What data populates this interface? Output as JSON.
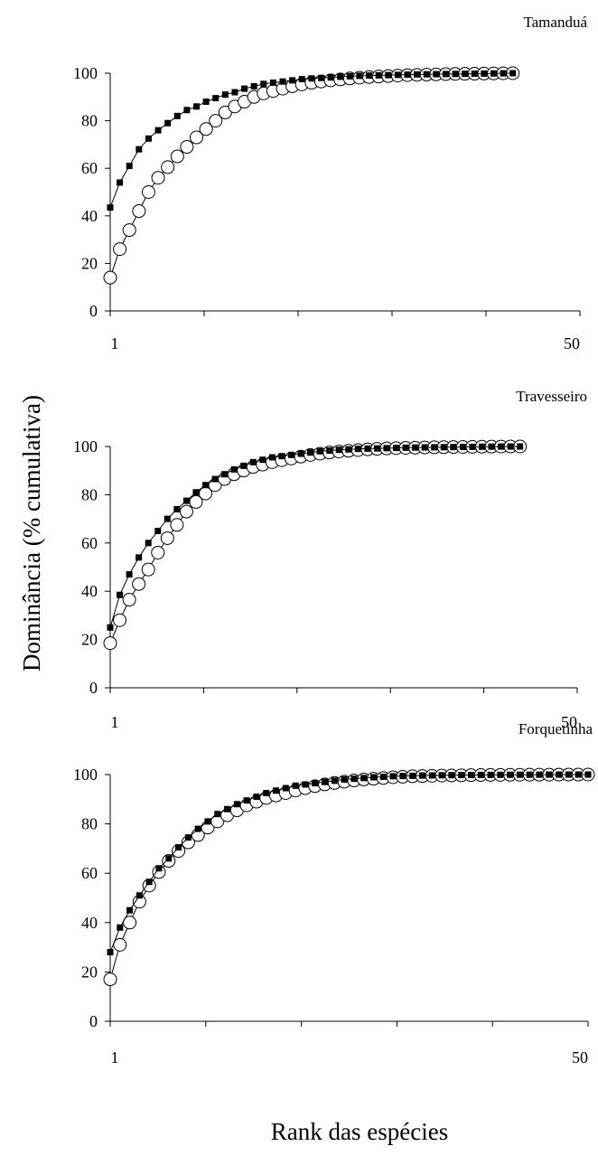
{
  "ylabel": "Dominância (% cumulativa)",
  "xlabel": "Rank das espécies",
  "colors": {
    "axis": "#000000",
    "filled_marker": "#000000",
    "open_marker_fill": "#ffffff"
  },
  "chart_data": [
    {
      "type": "line",
      "title": "Tamanduá",
      "xlim": [
        1,
        50
      ],
      "ylim": [
        0,
        100
      ],
      "xticklabels": [
        "1",
        "50"
      ],
      "yticks": [
        0,
        20,
        40,
        60,
        80,
        100
      ],
      "series": [
        {
          "marker": "filled-square",
          "x": [
            1,
            2,
            3,
            4,
            5,
            6,
            7,
            8,
            9,
            10,
            11,
            12,
            13,
            14,
            15,
            16,
            17,
            18,
            19,
            20,
            21,
            22,
            23,
            24,
            25,
            26,
            27,
            28,
            29,
            30,
            31,
            32,
            33,
            34,
            35,
            36,
            37,
            38,
            39,
            40,
            41,
            42,
            43
          ],
          "values": [
            43.5,
            54,
            61,
            68,
            72.5,
            76,
            79,
            82,
            84.5,
            86,
            88,
            89.5,
            91,
            92,
            93.5,
            94.5,
            95.5,
            96,
            96.5,
            97,
            97.5,
            97.8,
            98,
            98.2,
            98.5,
            98.7,
            98.9,
            99,
            99.1,
            99.2,
            99.3,
            99.4,
            99.5,
            99.55,
            99.6,
            99.65,
            99.7,
            99.75,
            99.8,
            99.85,
            99.9,
            99.95,
            100
          ]
        },
        {
          "marker": "open-circle",
          "x": [
            1,
            2,
            3,
            4,
            5,
            6,
            7,
            8,
            9,
            10,
            11,
            12,
            13,
            14,
            15,
            16,
            17,
            18,
            19,
            20,
            21,
            22,
            23,
            24,
            25,
            26,
            27,
            28,
            29,
            30,
            31,
            32,
            33,
            34,
            35,
            36,
            37,
            38,
            39,
            40,
            41,
            42,
            43
          ],
          "values": [
            14,
            26,
            34,
            42,
            50,
            56,
            60.5,
            65,
            69,
            73,
            76.5,
            80,
            83.5,
            86,
            88,
            90,
            91.5,
            92.5,
            93.5,
            94.5,
            95.3,
            96,
            96.5,
            97,
            97.4,
            97.8,
            98.1,
            98.4,
            98.6,
            98.8,
            99,
            99.2,
            99.3,
            99.4,
            99.5,
            99.6,
            99.7,
            99.75,
            99.8,
            99.85,
            99.9,
            99.95,
            100
          ]
        }
      ]
    },
    {
      "type": "line",
      "title": "Travesseiro",
      "xlim": [
        1,
        50
      ],
      "ylim": [
        0,
        100
      ],
      "xticklabels": [
        "1",
        "50"
      ],
      "yticks": [
        0,
        20,
        40,
        60,
        80,
        100
      ],
      "series": [
        {
          "marker": "filled-square",
          "x": [
            1,
            2,
            3,
            4,
            5,
            6,
            7,
            8,
            9,
            10,
            11,
            12,
            13,
            14,
            15,
            16,
            17,
            18,
            19,
            20,
            21,
            22,
            23,
            24,
            25,
            26,
            27,
            28,
            29,
            30,
            31,
            32,
            33,
            34,
            35,
            36,
            37,
            38,
            39,
            40,
            41,
            42,
            43,
            44
          ],
          "values": [
            25,
            38.5,
            47,
            54,
            60,
            65,
            70,
            74,
            77.5,
            81,
            84,
            86.5,
            88.5,
            90.5,
            92,
            93.5,
            94.5,
            95.5,
            96,
            96.5,
            97,
            97.5,
            98,
            98.3,
            98.6,
            98.8,
            99,
            99.1,
            99.2,
            99.3,
            99.4,
            99.5,
            99.55,
            99.6,
            99.65,
            99.7,
            99.75,
            99.8,
            99.85,
            99.9,
            99.93,
            99.96,
            99.98,
            100
          ]
        },
        {
          "marker": "open-circle",
          "x": [
            1,
            2,
            3,
            4,
            5,
            6,
            7,
            8,
            9,
            10,
            11,
            12,
            13,
            14,
            15,
            16,
            17,
            18,
            19,
            20,
            21,
            22,
            23,
            24,
            25,
            26,
            27,
            28,
            29,
            30,
            31,
            32,
            33,
            34,
            35,
            36,
            37,
            38,
            39,
            40,
            41,
            42,
            43,
            44
          ],
          "values": [
            18.5,
            28,
            36.5,
            43,
            49,
            56,
            62,
            67.5,
            73,
            77,
            80.5,
            84,
            86.5,
            88.5,
            90,
            91.5,
            92.5,
            93.5,
            94.3,
            95,
            95.8,
            96.5,
            97,
            97.5,
            97.9,
            98.2,
            98.5,
            98.8,
            99,
            99.2,
            99.3,
            99.4,
            99.5,
            99.6,
            99.65,
            99.7,
            99.75,
            99.8,
            99.85,
            99.9,
            99.93,
            99.96,
            99.98,
            100
          ]
        }
      ]
    },
    {
      "type": "line",
      "title": "Forquetinha",
      "xlim": [
        1,
        50
      ],
      "ylim": [
        0,
        100
      ],
      "xticklabels": [
        "1",
        "50"
      ],
      "yticks": [
        0,
        20,
        40,
        60,
        80,
        100
      ],
      "series": [
        {
          "marker": "filled-square",
          "x": [
            1,
            2,
            3,
            4,
            5,
            6,
            7,
            8,
            9,
            10,
            11,
            12,
            13,
            14,
            15,
            16,
            17,
            18,
            19,
            20,
            21,
            22,
            23,
            24,
            25,
            26,
            27,
            28,
            29,
            30,
            31,
            32,
            33,
            34,
            35,
            36,
            37,
            38,
            39,
            40,
            41,
            42,
            43,
            44,
            45,
            46,
            47,
            48,
            49,
            50
          ],
          "values": [
            28,
            38,
            45,
            51,
            56.5,
            62,
            66,
            70.5,
            74.5,
            78,
            81,
            84,
            86,
            88,
            89.5,
            91,
            92.5,
            93.5,
            94.5,
            95.5,
            96,
            96.5,
            97,
            97.5,
            98,
            98.3,
            98.6,
            98.9,
            99.1,
            99.3,
            99.4,
            99.5,
            99.6,
            99.65,
            99.7,
            99.75,
            99.8,
            99.83,
            99.86,
            99.88,
            99.9,
            99.92,
            99.94,
            99.95,
            99.96,
            99.97,
            99.98,
            99.99,
            99.99,
            100
          ]
        },
        {
          "marker": "open-circle",
          "x": [
            1,
            2,
            3,
            4,
            5,
            6,
            7,
            8,
            9,
            10,
            11,
            12,
            13,
            14,
            15,
            16,
            17,
            18,
            19,
            20,
            21,
            22,
            23,
            24,
            25,
            26,
            27,
            28,
            29,
            30,
            31,
            32,
            33,
            34,
            35,
            36,
            37,
            38,
            39,
            40,
            41,
            42,
            43,
            44,
            45,
            46,
            47,
            48,
            49,
            50
          ],
          "values": [
            17,
            31,
            40,
            48.5,
            55,
            60.5,
            65,
            69,
            72.5,
            75.5,
            78.5,
            81,
            83.5,
            85.5,
            87.5,
            89,
            90.5,
            91.5,
            92.5,
            93.5,
            94.5,
            95.3,
            96,
            96.6,
            97.1,
            97.6,
            98,
            98.3,
            98.6,
            98.9,
            99.1,
            99.3,
            99.4,
            99.5,
            99.6,
            99.65,
            99.7,
            99.75,
            99.8,
            99.84,
            99.87,
            99.9,
            99.92,
            99.94,
            99.95,
            99.96,
            99.97,
            99.98,
            99.99,
            100
          ]
        }
      ]
    }
  ]
}
